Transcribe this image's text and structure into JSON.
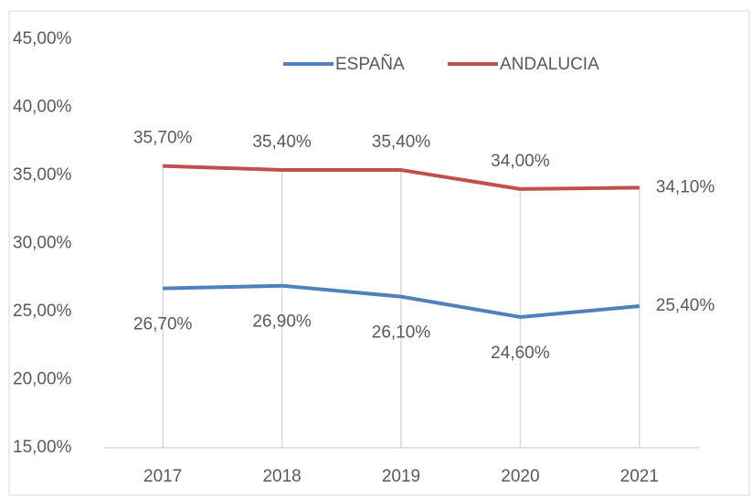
{
  "chart_data": {
    "type": "line",
    "categories": [
      "2017",
      "2018",
      "2019",
      "2020",
      "2021"
    ],
    "series": [
      {
        "name": "ESPAÑA",
        "color": "#4f81bd",
        "values": [
          26.7,
          26.9,
          26.1,
          24.6,
          25.4
        ],
        "value_labels": [
          "26,70%",
          "26,90%",
          "26,10%",
          "24,60%",
          "25,40%"
        ]
      },
      {
        "name": "ANDALUCIA",
        "color": "#c0504d",
        "values": [
          35.7,
          35.4,
          35.4,
          34.0,
          34.1
        ],
        "value_labels": [
          "35,70%",
          "35,40%",
          "35,40%",
          "34,00%",
          "34,10%"
        ]
      }
    ],
    "ylim": [
      15,
      45
    ],
    "yticks": [
      {
        "value": 15,
        "label": "15,00%"
      },
      {
        "value": 20,
        "label": "20,00%"
      },
      {
        "value": 25,
        "label": "25,00%"
      },
      {
        "value": 30,
        "label": "30,00%"
      },
      {
        "value": 35,
        "label": "35,00%"
      },
      {
        "value": 40,
        "label": "40,00%"
      },
      {
        "value": 45,
        "label": "45,00%"
      }
    ],
    "legend": "top"
  }
}
